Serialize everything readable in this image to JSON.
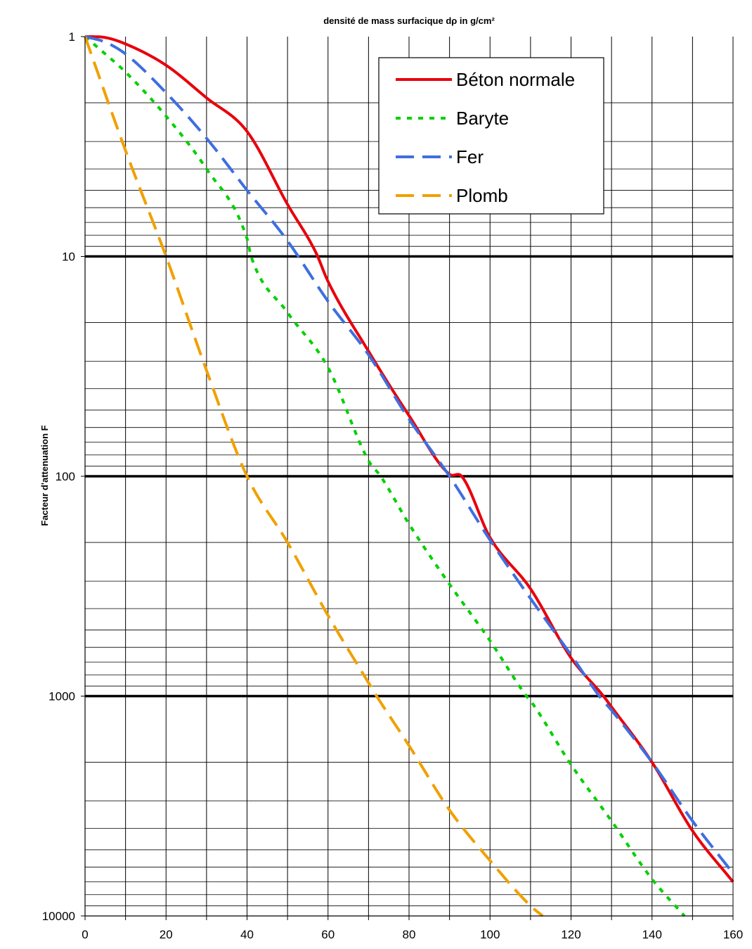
{
  "chart_data": {
    "type": "line",
    "title": "densité de mass surfacique dρ in g/cm²",
    "xlabel": "",
    "ylabel": "Facteur d'attenuation F",
    "xlim": [
      0,
      160
    ],
    "ylim": [
      1,
      10000
    ],
    "y_scale": "log",
    "y_reversed": true,
    "grid": true,
    "legend_position": "top-right",
    "x_ticks": [
      "0",
      "20",
      "40",
      "60",
      "80",
      "100",
      "120",
      "140",
      "160"
    ],
    "y_ticks": [
      "1",
      "10",
      "100",
      "1000",
      "10000"
    ],
    "series": [
      {
        "name": "Béton normale",
        "color": "#e8000b",
        "style": "solid",
        "x": [
          0,
          5,
          10,
          20,
          30,
          40,
          50,
          57,
          60,
          70,
          80,
          90,
          93,
          100,
          110,
          120,
          128,
          130,
          140,
          150,
          160
        ],
        "y": [
          1,
          1.01,
          1.08,
          1.35,
          1.9,
          2.7,
          5.8,
          9.6,
          13,
          27,
          53,
          98,
          100,
          190,
          325,
          670,
          1000,
          1120,
          2000,
          4100,
          7000
        ]
      },
      {
        "name": "Baryte",
        "color": "#00d000",
        "style": "dotted",
        "x": [
          0,
          5,
          10,
          20,
          30,
          40,
          41,
          50,
          60,
          70,
          73,
          80,
          90,
          100,
          109,
          110,
          120,
          130,
          140,
          148
        ],
        "y": [
          1,
          1.2,
          1.45,
          2.3,
          4,
          8.3,
          10,
          18,
          32,
          85,
          100,
          165,
          310,
          560,
          1000,
          1050,
          2050,
          3700,
          6800,
          10000
        ]
      },
      {
        "name": "Fer",
        "color": "#3e6ee0",
        "style": "dashed",
        "x": [
          0,
          5,
          10,
          20,
          30,
          40,
          50,
          60,
          70,
          80,
          90,
          100,
          110,
          120,
          127,
          130,
          140,
          150,
          160
        ],
        "y": [
          1,
          1.06,
          1.2,
          1.8,
          2.9,
          5,
          8.5,
          16,
          28,
          55,
          100,
          195,
          360,
          650,
          1000,
          1160,
          2000,
          3700,
          6400
        ]
      },
      {
        "name": "Plomb",
        "color": "#f0a000",
        "style": "dashed",
        "x": [
          0,
          10,
          20,
          30,
          40,
          50,
          60,
          70,
          72,
          80,
          90,
          100,
          110,
          113
        ],
        "y": [
          1,
          3.3,
          10,
          33,
          100,
          200,
          430,
          870,
          1000,
          1680,
          3300,
          5600,
          9000,
          10000
        ]
      }
    ]
  }
}
